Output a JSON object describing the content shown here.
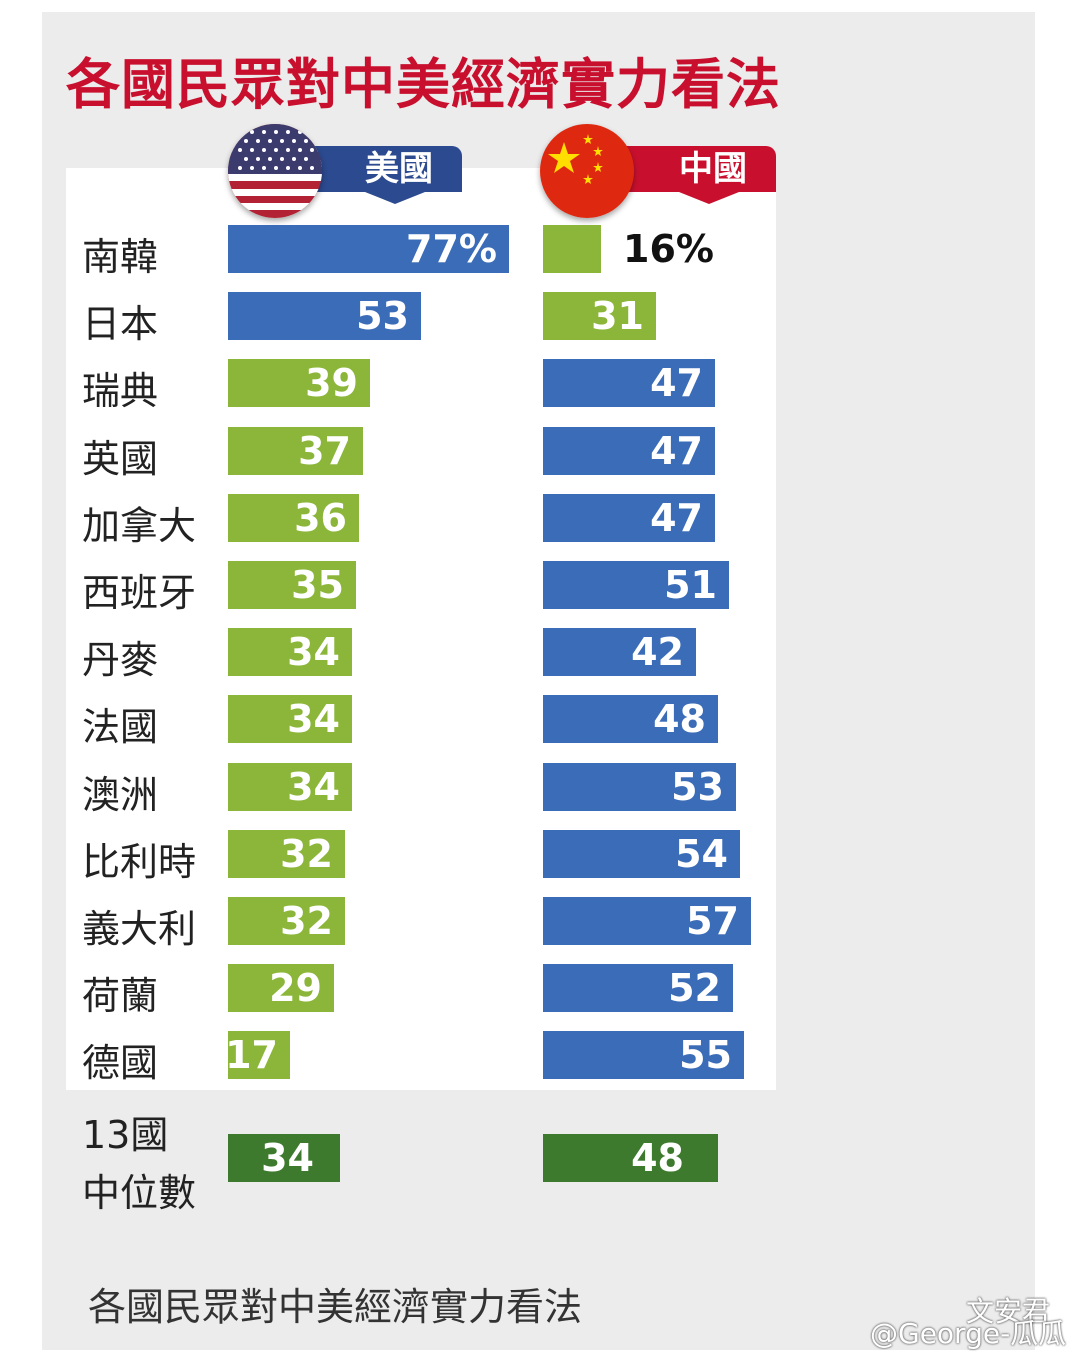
{
  "title": "各國民眾對中美經濟實力看法",
  "legend": {
    "us": "美國",
    "china": "中國"
  },
  "colors": {
    "blue": "#3b6cb8",
    "green": "#8bb63a",
    "dark_green": "#3e7a2e",
    "title_red": "#c8102e"
  },
  "chart_data": {
    "type": "bar",
    "title": "各國民眾對中美經濟實力看法",
    "categories": [
      "南韓",
      "日本",
      "瑞典",
      "英國",
      "加拿大",
      "西班牙",
      "丹麥",
      "法國",
      "澳洲",
      "比利時",
      "義大利",
      "荷蘭",
      "德國"
    ],
    "series": [
      {
        "name": "美國",
        "values": [
          77,
          53,
          39,
          37,
          36,
          35,
          34,
          34,
          34,
          32,
          32,
          29,
          17
        ],
        "labels": [
          "77%",
          "53",
          "39",
          "37",
          "36",
          "35",
          "34",
          "34",
          "34",
          "32",
          "32",
          "29",
          "17"
        ],
        "colors": [
          "blue",
          "blue",
          "green",
          "green",
          "green",
          "green",
          "green",
          "green",
          "green",
          "green",
          "green",
          "green",
          "green"
        ]
      },
      {
        "name": "中國",
        "values": [
          16,
          31,
          47,
          47,
          47,
          51,
          42,
          48,
          53,
          54,
          57,
          52,
          55
        ],
        "labels": [
          "16%",
          "31",
          "47",
          "47",
          "47",
          "51",
          "42",
          "48",
          "53",
          "54",
          "57",
          "52",
          "55"
        ],
        "colors": [
          "green",
          "green",
          "blue",
          "blue",
          "blue",
          "blue",
          "blue",
          "blue",
          "blue",
          "blue",
          "blue",
          "blue",
          "blue"
        ]
      }
    ],
    "median": {
      "label_line1": "13國",
      "label_line2": "中位數",
      "us": 34,
      "china": 48,
      "us_label": "34",
      "china_label": "48"
    }
  },
  "caption": "各國民眾對中美經濟實力看法",
  "watermark": {
    "line1": "文安君",
    "line2": "@George-瓜瓜"
  }
}
